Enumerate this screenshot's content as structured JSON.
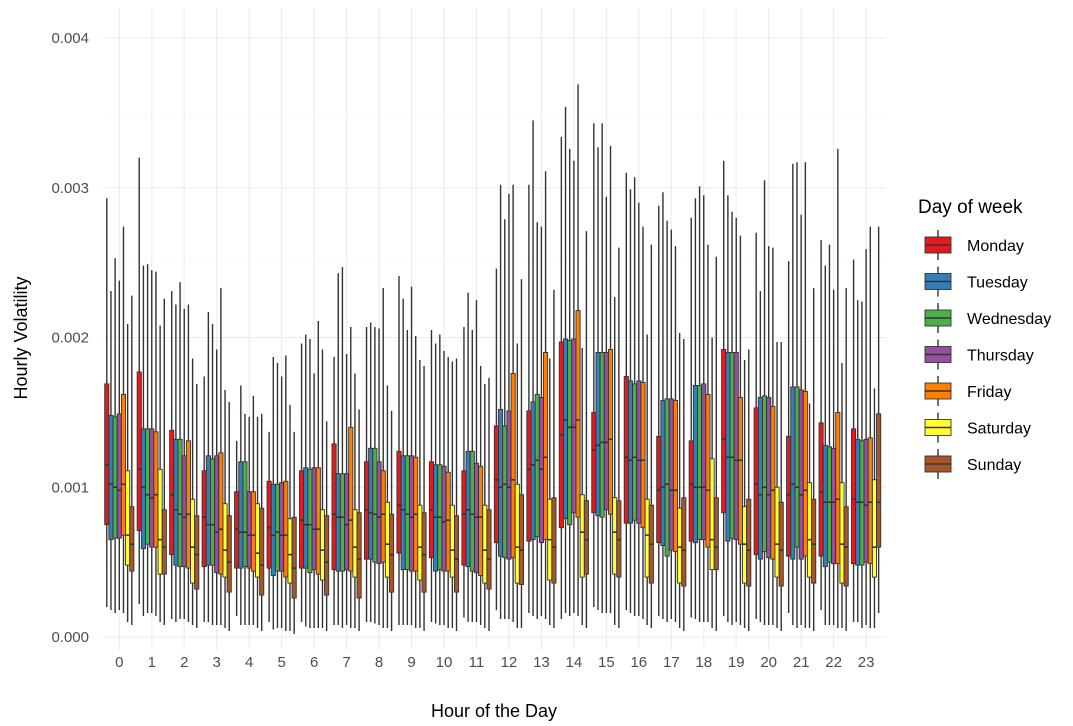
{
  "chart_data": {
    "type": "boxplot",
    "xlabel": "Hour of the Day",
    "ylabel": "Hourly Volatility",
    "ylim": [
      0,
      0.0041
    ],
    "y_ticks": [
      "0.000",
      "0.001",
      "0.002",
      "0.003",
      "0.004"
    ],
    "y_tick_values": [
      0,
      0.001,
      0.002,
      0.003,
      0.004
    ],
    "categories": [
      "0",
      "1",
      "2",
      "3",
      "4",
      "5",
      "6",
      "7",
      "8",
      "9",
      "10",
      "11",
      "12",
      "13",
      "14",
      "15",
      "16",
      "17",
      "18",
      "19",
      "20",
      "21",
      "22",
      "23"
    ],
    "grid": "on",
    "legend": {
      "title": "Day of week",
      "position": "right",
      "entries": [
        "Monday",
        "Tuesday",
        "Wednesday",
        "Thursday",
        "Friday",
        "Saturday",
        "Sunday"
      ]
    },
    "series": [
      {
        "name": "Monday",
        "color": "#e41a1c",
        "q1": [
          0.00075,
          0.00071,
          0.00055,
          0.00047,
          0.00046,
          0.00046,
          0.00046,
          0.00045,
          0.00052,
          0.00056,
          0.00053,
          0.00048,
          0.00063,
          0.00064,
          0.00073,
          0.00083,
          0.00076,
          0.00063,
          0.00064,
          0.00083,
          0.00055,
          0.00054,
          0.00054,
          0.00049
        ],
        "median": [
          0.00115,
          0.00112,
          0.00095,
          0.0008,
          0.00072,
          0.00073,
          0.00078,
          0.00082,
          0.00085,
          0.00088,
          0.00085,
          0.00082,
          0.00105,
          0.00112,
          0.00135,
          0.00125,
          0.0012,
          0.00098,
          0.00102,
          0.00132,
          0.00102,
          0.00095,
          0.00097,
          0.00092
        ],
        "q3": [
          0.00169,
          0.00177,
          0.00138,
          0.00111,
          0.00097,
          0.00104,
          0.00111,
          0.00129,
          0.00117,
          0.00124,
          0.00117,
          0.00111,
          0.00141,
          0.00151,
          0.00197,
          0.0015,
          0.00174,
          0.00134,
          0.00131,
          0.00192,
          0.00153,
          0.00134,
          0.00143,
          0.00139
        ],
        "lower": [
          0.0002,
          0.00022,
          0.00012,
          0.0001,
          0.00014,
          0.0001,
          0.0001,
          8e-05,
          0.0001,
          8e-05,
          0.0001,
          0.00013,
          0.00018,
          0.00016,
          0.00012,
          0.0002,
          0.00018,
          0.00014,
          0.00013,
          0.00014,
          0.00012,
          0.00016,
          0.00018,
          0.0001
        ],
        "upper": [
          0.00293,
          0.0032,
          0.00231,
          0.00174,
          0.00131,
          0.00137,
          0.00196,
          0.00187,
          0.00207,
          0.00241,
          0.00205,
          0.00207,
          0.00246,
          0.00302,
          0.00334,
          0.00343,
          0.0031,
          0.00288,
          0.0028,
          0.00318,
          0.0027,
          0.00251,
          0.00265,
          0.00252
        ]
      },
      {
        "name": "Tuesday",
        "color": "#377eb8",
        "q1": [
          0.00065,
          0.00059,
          0.00048,
          0.00048,
          0.00046,
          0.00041,
          0.00046,
          0.00044,
          0.00052,
          0.00045,
          0.00044,
          0.00047,
          0.00054,
          0.00065,
          0.00079,
          0.00081,
          0.00076,
          0.00061,
          0.00063,
          0.00064,
          0.00052,
          0.00052,
          0.00047,
          0.00048
        ],
        "median": [
          0.00102,
          0.001,
          0.00085,
          0.00075,
          0.0007,
          0.00068,
          0.00075,
          0.0008,
          0.00083,
          0.00085,
          0.0008,
          0.00085,
          0.001,
          0.00115,
          0.00145,
          0.00128,
          0.00118,
          0.001,
          0.001,
          0.0012,
          0.00095,
          0.00102,
          0.0009,
          0.0009
        ],
        "q3": [
          0.00148,
          0.00139,
          0.00132,
          0.00121,
          0.00117,
          0.00102,
          0.00113,
          0.00109,
          0.00126,
          0.00121,
          0.00115,
          0.00124,
          0.00152,
          0.00157,
          0.00199,
          0.0019,
          0.00171,
          0.00158,
          0.00168,
          0.0019,
          0.0016,
          0.00167,
          0.00128,
          0.00132
        ],
        "lower": [
          0.00018,
          0.00014,
          0.0001,
          0.0001,
          8e-05,
          5e-05,
          7e-05,
          8e-05,
          0.0001,
          8e-05,
          9e-05,
          0.0001,
          0.00012,
          0.00014,
          0.00016,
          0.00018,
          0.00016,
          0.00012,
          0.00012,
          0.0001,
          0.0001,
          8e-05,
          8e-05,
          0.0001
        ],
        "upper": [
          0.00231,
          0.00248,
          0.00222,
          0.00217,
          0.00168,
          0.00187,
          0.00202,
          0.00243,
          0.0021,
          0.00226,
          0.00196,
          0.0023,
          0.00302,
          0.00345,
          0.00354,
          0.00327,
          0.00299,
          0.00297,
          0.00293,
          0.00295,
          0.00231,
          0.00316,
          0.00248,
          0.00225
        ]
      },
      {
        "name": "Wednesday",
        "color": "#4daf4a",
        "q1": [
          0.00066,
          0.00062,
          0.00047,
          0.00048,
          0.00047,
          0.00044,
          0.00043,
          0.00044,
          0.0005,
          0.00045,
          0.00045,
          0.00044,
          0.00053,
          0.00067,
          0.00075,
          0.0008,
          0.00078,
          0.00054,
          0.00065,
          0.00066,
          0.00057,
          0.0006,
          0.0005,
          0.00048
        ],
        "median": [
          0.001,
          0.00095,
          0.00082,
          0.00075,
          0.0007,
          0.0007,
          0.00075,
          0.0008,
          0.00082,
          0.00082,
          0.0008,
          0.00082,
          0.00102,
          0.00118,
          0.0014,
          0.0013,
          0.0012,
          0.00102,
          0.001,
          0.0012,
          0.001,
          0.001,
          0.0009,
          0.0009
        ],
        "q3": [
          0.00147,
          0.00139,
          0.00132,
          0.00119,
          0.00117,
          0.00102,
          0.00112,
          0.00109,
          0.00126,
          0.00121,
          0.00115,
          0.00124,
          0.00141,
          0.00162,
          0.00198,
          0.0019,
          0.00169,
          0.00159,
          0.00168,
          0.0019,
          0.00161,
          0.00167,
          0.00127,
          0.00131
        ],
        "lower": [
          0.00016,
          0.00016,
          0.00012,
          8e-05,
          8e-05,
          6e-05,
          6e-05,
          6e-05,
          9e-05,
          8e-05,
          8e-05,
          0.0001,
          0.00012,
          0.00012,
          0.00014,
          0.00016,
          0.00014,
          0.0001,
          0.0001,
          8e-05,
          8e-05,
          6e-05,
          8e-05,
          6e-05
        ],
        "upper": [
          0.00253,
          0.00249,
          0.00237,
          0.00209,
          0.00149,
          0.00183,
          0.00199,
          0.00247,
          0.00207,
          0.00205,
          0.00202,
          0.00205,
          0.00279,
          0.00277,
          0.00326,
          0.00343,
          0.00307,
          0.00278,
          0.00301,
          0.00284,
          0.00305,
          0.00317,
          0.00262,
          0.00224
        ],
        "lower_alt": []
      },
      {
        "name": "Thursday",
        "color": "#984ea3",
        "q1": [
          0.00066,
          0.0006,
          0.00047,
          0.00043,
          0.00046,
          0.00044,
          0.00045,
          0.00045,
          0.00049,
          0.00044,
          0.00044,
          0.00043,
          0.00052,
          0.00063,
          0.00083,
          0.00085,
          0.00076,
          0.00058,
          0.00065,
          0.00065,
          0.00053,
          0.00052,
          0.00049,
          0.0005
        ],
        "median": [
          0.00098,
          0.00093,
          0.0008,
          0.0007,
          0.00068,
          0.00068,
          0.00072,
          0.00075,
          0.0008,
          0.0008,
          0.00077,
          0.0008,
          0.001,
          0.00112,
          0.0014,
          0.0013,
          0.00118,
          0.00098,
          0.001,
          0.00118,
          0.00095,
          0.00095,
          0.0009,
          0.00088
        ],
        "q3": [
          0.00149,
          0.00139,
          0.00121,
          0.00121,
          0.00097,
          0.00103,
          0.00113,
          0.00109,
          0.00117,
          0.00121,
          0.00114,
          0.00116,
          0.00151,
          0.0016,
          0.00199,
          0.0019,
          0.00171,
          0.00159,
          0.00169,
          0.0019,
          0.0016,
          0.00165,
          0.00126,
          0.00132
        ],
        "lower": [
          0.00018,
          0.00016,
          0.00012,
          8e-05,
          8e-05,
          6e-05,
          6e-05,
          8e-05,
          8e-05,
          8e-05,
          8e-05,
          0.0001,
          0.00012,
          0.00014,
          0.00016,
          0.00016,
          0.00014,
          0.00012,
          0.0001,
          0.0001,
          8e-05,
          8e-05,
          8e-05,
          8e-05
        ],
        "upper": [
          0.00238,
          0.00245,
          0.00219,
          0.00192,
          0.00147,
          0.00174,
          0.00176,
          0.00189,
          0.00206,
          0.00234,
          0.00191,
          0.00225,
          0.00296,
          0.00274,
          0.00318,
          0.00294,
          0.0029,
          0.00272,
          0.00295,
          0.0028,
          0.00261,
          0.00282,
          0.00232,
          0.00259
        ]
      },
      {
        "name": "Friday",
        "color": "#ff7f00",
        "q1": [
          0.00068,
          0.0006,
          0.00046,
          0.00042,
          0.00044,
          0.0004,
          0.00042,
          0.00044,
          0.0005,
          0.00044,
          0.00044,
          0.00041,
          0.00053,
          0.00065,
          0.0008,
          0.00082,
          0.00073,
          0.00057,
          0.0006,
          0.00062,
          0.00052,
          0.00054,
          0.00049,
          0.00049
        ],
        "median": [
          0.00102,
          0.00095,
          0.00082,
          0.00072,
          0.00068,
          0.00068,
          0.00072,
          0.00078,
          0.00082,
          0.00082,
          0.00078,
          0.0008,
          0.00105,
          0.0012,
          0.00145,
          0.00132,
          0.00118,
          0.00098,
          0.00098,
          0.00118,
          0.00098,
          0.00098,
          0.00092,
          0.0009
        ],
        "q3": [
          0.00162,
          0.00137,
          0.00131,
          0.00123,
          0.00097,
          0.00104,
          0.00113,
          0.0014,
          0.00111,
          0.0012,
          0.0011,
          0.00114,
          0.00176,
          0.0019,
          0.00218,
          0.00192,
          0.0017,
          0.00158,
          0.00162,
          0.0016,
          0.00154,
          0.00164,
          0.0015,
          0.00133
        ],
        "lower": [
          0.00016,
          0.00014,
          0.0001,
          8e-05,
          8e-05,
          4e-05,
          6e-05,
          6e-05,
          6e-05,
          6e-05,
          6e-05,
          8e-05,
          0.0001,
          0.00012,
          0.00014,
          0.00016,
          0.00012,
          0.0001,
          0.0001,
          8e-05,
          8e-05,
          6e-05,
          6e-05,
          6e-05
        ],
        "upper": [
          0.00274,
          0.00244,
          0.00222,
          0.00233,
          0.00161,
          0.00188,
          0.00211,
          0.00207,
          0.00233,
          0.00201,
          0.00187,
          0.00181,
          0.00302,
          0.00311,
          0.00369,
          0.00328,
          0.00274,
          0.00261,
          0.00262,
          0.00268,
          0.0026,
          0.00317,
          0.00326,
          0.00274
        ]
      },
      {
        "name": "Saturday",
        "color": "#ffff33",
        "q1": [
          0.00048,
          0.00042,
          0.00036,
          0.0004,
          0.0004,
          0.00036,
          0.00038,
          0.0004,
          0.0004,
          0.00038,
          0.0004,
          0.00036,
          0.00036,
          0.00038,
          0.0004,
          0.00042,
          0.0004,
          0.00036,
          0.00045,
          0.00036,
          0.0004,
          0.0004,
          0.00036,
          0.0004
        ],
        "median": [
          0.00068,
          0.00065,
          0.0006,
          0.00058,
          0.00056,
          0.00055,
          0.00058,
          0.0006,
          0.00062,
          0.0006,
          0.00058,
          0.00058,
          0.0006,
          0.00065,
          0.0007,
          0.0007,
          0.00068,
          0.0006,
          0.00065,
          0.00062,
          0.00062,
          0.00065,
          0.00062,
          0.0006
        ],
        "q3": [
          0.00111,
          0.00112,
          0.00092,
          0.00089,
          0.00089,
          0.00079,
          0.00085,
          0.00085,
          0.0009,
          0.00088,
          0.00088,
          0.00088,
          0.00102,
          0.00092,
          0.00095,
          0.00093,
          0.00092,
          0.00086,
          0.00119,
          0.00087,
          0.001,
          0.00103,
          0.00103,
          0.00105
        ],
        "lower": [
          0.0001,
          0.0001,
          8e-05,
          6e-05,
          6e-05,
          4e-05,
          6e-05,
          6e-05,
          6e-05,
          6e-05,
          6e-05,
          6e-05,
          6e-05,
          8e-05,
          8e-05,
          8e-05,
          8e-05,
          6e-05,
          6e-05,
          6e-05,
          6e-05,
          6e-05,
          6e-05,
          6e-05
        ],
        "upper": [
          0.00209,
          0.00208,
          0.00186,
          0.00165,
          0.00147,
          0.00155,
          0.00192,
          0.00176,
          0.00168,
          0.00185,
          0.00184,
          0.00169,
          0.00196,
          0.00186,
          0.00193,
          0.00227,
          0.00202,
          0.00203,
          0.002,
          0.00185,
          0.00197,
          0.00156,
          0.00183,
          0.00166
        ]
      },
      {
        "name": "Sunday",
        "color": "#a65628",
        "q1": [
          0.00044,
          0.00042,
          0.00032,
          0.0003,
          0.00028,
          0.00026,
          0.00028,
          0.00026,
          0.0003,
          0.0003,
          0.0003,
          0.00032,
          0.00035,
          0.00036,
          0.00042,
          0.0004,
          0.00036,
          0.00034,
          0.00045,
          0.00034,
          0.00034,
          0.00036,
          0.00034,
          0.0006
        ],
        "median": [
          0.00062,
          0.0006,
          0.00055,
          0.0005,
          0.00048,
          0.00046,
          0.0005,
          0.00052,
          0.00055,
          0.00055,
          0.00052,
          0.00052,
          0.00058,
          0.0006,
          0.00065,
          0.00065,
          0.00062,
          0.00058,
          0.0006,
          0.00058,
          0.00058,
          0.00062,
          0.0006,
          0.0009
        ],
        "q3": [
          0.00087,
          0.00085,
          0.00081,
          0.00081,
          0.00086,
          0.0008,
          0.00081,
          0.00083,
          0.00082,
          0.00083,
          0.00081,
          0.00085,
          0.00095,
          0.00093,
          0.00091,
          0.00091,
          0.00088,
          0.00093,
          0.00093,
          0.00092,
          0.0009,
          0.00092,
          0.00087,
          0.00149
        ],
        "lower": [
          8e-05,
          8e-05,
          6e-05,
          4e-05,
          4e-05,
          2e-05,
          4e-05,
          4e-05,
          4e-05,
          4e-05,
          4e-05,
          4e-05,
          6e-05,
          6e-05,
          6e-05,
          6e-05,
          6e-05,
          4e-05,
          4e-05,
          4e-05,
          4e-05,
          4e-05,
          4e-05,
          0.00016
        ],
        "upper": [
          0.00228,
          0.00226,
          0.00169,
          0.00157,
          0.00149,
          0.00137,
          0.00144,
          0.00152,
          0.00151,
          0.00181,
          0.00186,
          0.00173,
          0.00239,
          0.00232,
          0.00271,
          0.0026,
          0.00262,
          0.00199,
          0.00254,
          0.00192,
          0.00197,
          0.00233,
          0.00233,
          0.00274
        ]
      }
    ]
  }
}
